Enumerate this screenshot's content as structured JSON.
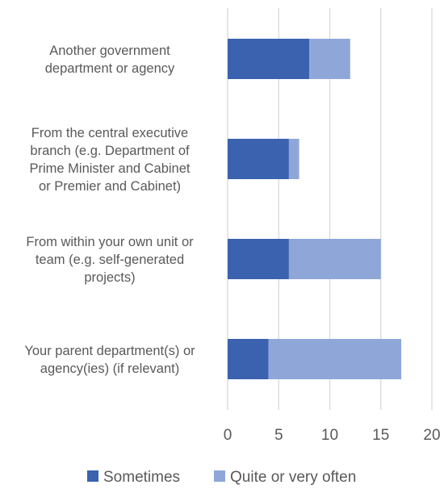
{
  "colors": {
    "sometimes": "#3A62AE",
    "often": "#8FA7D8",
    "grid": "#D9D9D9",
    "text": "#595959"
  },
  "chart_data": {
    "type": "bar",
    "orientation": "horizontal",
    "stacked": true,
    "categories": [
      "Another government department or agency",
      "From the central executive branch (e.g. Department of Prime Minister and Cabinet or Premier and Cabinet)",
      "From within your own unit or team (e.g. self-generated projects)",
      "Your parent department(s) or agency(ies) (if relevant)"
    ],
    "category_lines": [
      [
        "Another government",
        "department or agency"
      ],
      [
        "From the central executive",
        "branch (e.g. Department of",
        "Prime Minister and Cabinet",
        "or Premier and Cabinet)"
      ],
      [
        "From within your own unit or",
        "team (e.g. self-generated",
        "projects)"
      ],
      [
        "Your parent department(s) or",
        "agency(ies) (if relevant)"
      ]
    ],
    "series": [
      {
        "name": "Sometimes",
        "values": [
          8,
          6,
          6,
          4
        ]
      },
      {
        "name": "Quite or very often",
        "values": [
          4,
          1,
          9,
          13
        ]
      }
    ],
    "xlim": [
      0,
      20
    ],
    "xticks": [
      0,
      5,
      10,
      15,
      20
    ],
    "grid": true,
    "legend_position": "bottom"
  }
}
